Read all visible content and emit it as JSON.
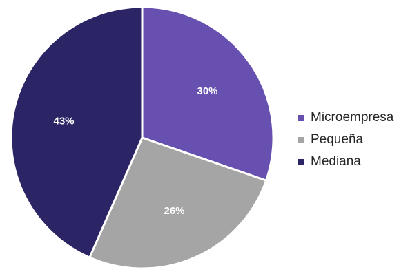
{
  "chart_data": {
    "type": "pie",
    "title": "",
    "categories": [
      "Microempresa",
      "Pequeña",
      "Mediana"
    ],
    "values": [
      30,
      26,
      43
    ],
    "labels": [
      "30%",
      "26%",
      "43%"
    ],
    "colors": [
      "#6750b0",
      "#a5a5a5",
      "#2b2565"
    ],
    "start_angle_deg": 0,
    "direction": "clockwise",
    "legend": {
      "position": "right",
      "items": [
        {
          "label": "Microempresa",
          "color": "#6750b0"
        },
        {
          "label": "Pequeña",
          "color": "#a5a5a5"
        },
        {
          "label": "Mediana",
          "color": "#2b2565"
        }
      ]
    }
  }
}
